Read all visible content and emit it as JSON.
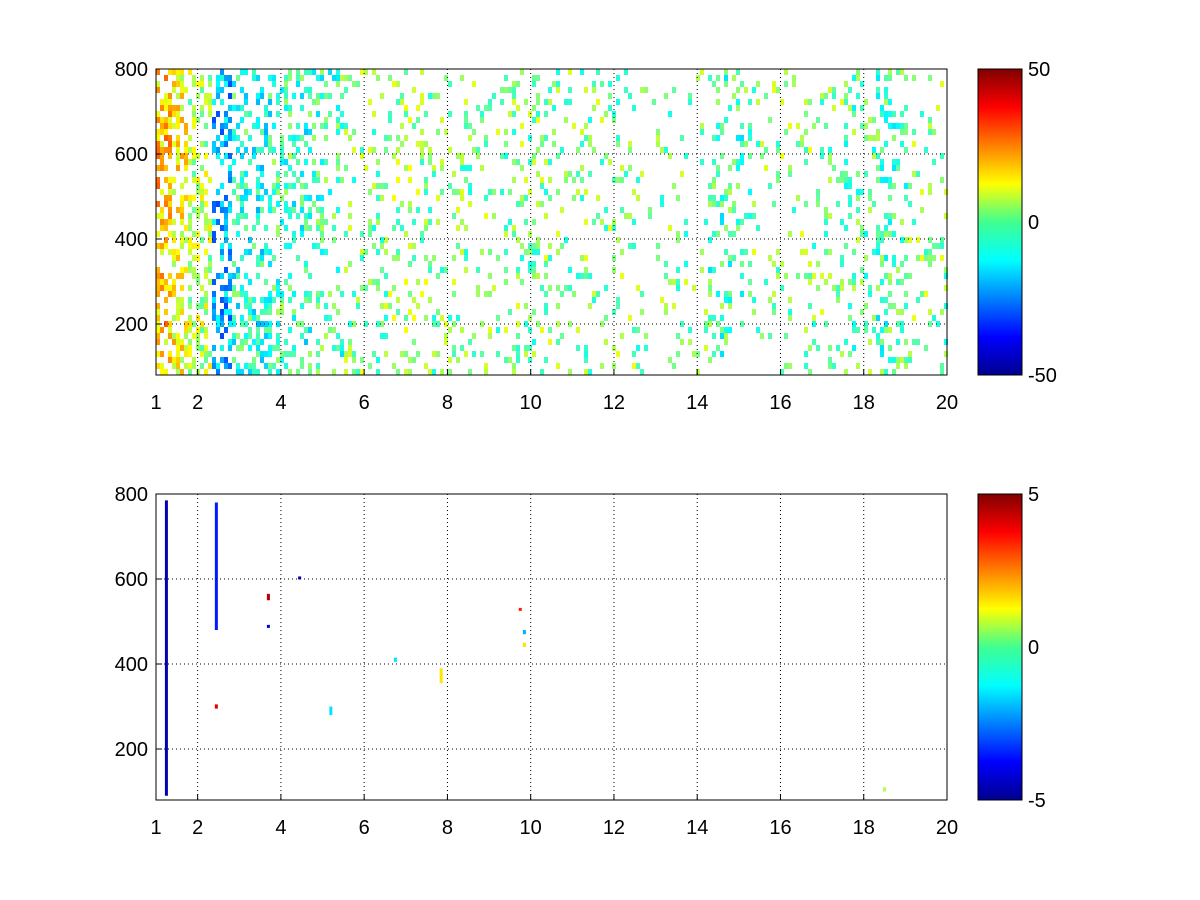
{
  "chart_data": [
    {
      "type": "heatmap",
      "title": "",
      "xlabel": "",
      "ylabel": "",
      "xlim": [
        1,
        20
      ],
      "ylim": [
        80,
        800
      ],
      "grid": true,
      "x_ticks": [
        1,
        2,
        4,
        6,
        8,
        10,
        12,
        14,
        16,
        18,
        20
      ],
      "y_ticks": [
        200,
        400,
        600,
        800
      ],
      "colorbar": {
        "colormap": "jet",
        "clim": [
          -50,
          50
        ],
        "ticks": [
          50,
          0,
          -50
        ]
      },
      "background": "#ffffff",
      "approximate_column_density": [
        {
          "x": 1.1,
          "density": 0.9,
          "bias": 0.18
        },
        {
          "x": 1.5,
          "density": 0.8,
          "bias": 0.12
        },
        {
          "x": 2.0,
          "density": 0.7,
          "bias": 0.05
        },
        {
          "x": 2.5,
          "density": 0.85,
          "bias": -0.2
        },
        {
          "x": 3.0,
          "density": 0.75,
          "bias": -0.08
        },
        {
          "x": 3.5,
          "density": 0.7,
          "bias": -0.1
        },
        {
          "x": 4.0,
          "density": 0.65,
          "bias": -0.05
        },
        {
          "x": 4.5,
          "density": 0.55,
          "bias": -0.08
        },
        {
          "x": 5.0,
          "density": 0.45,
          "bias": -0.05
        },
        {
          "x": 6.0,
          "density": 0.35,
          "bias": 0.0
        },
        {
          "x": 7.0,
          "density": 0.3,
          "bias": 0.02
        },
        {
          "x": 8.0,
          "density": 0.33,
          "bias": 0.0
        },
        {
          "x": 9.0,
          "density": 0.25,
          "bias": 0.0
        },
        {
          "x": 10.0,
          "density": 0.4,
          "bias": 0.0
        },
        {
          "x": 11.0,
          "density": 0.25,
          "bias": 0.0
        },
        {
          "x": 12.0,
          "density": 0.2,
          "bias": 0.0
        },
        {
          "x": 13.0,
          "density": 0.15,
          "bias": 0.0
        },
        {
          "x": 14.0,
          "density": 0.14,
          "bias": 0.0
        },
        {
          "x": 14.5,
          "density": 0.45,
          "bias": -0.05
        },
        {
          "x": 16.0,
          "density": 0.2,
          "bias": 0.0
        },
        {
          "x": 17.0,
          "density": 0.25,
          "bias": 0.0
        },
        {
          "x": 18.0,
          "density": 0.4,
          "bias": -0.03
        },
        {
          "x": 18.5,
          "density": 0.55,
          "bias": -0.05
        },
        {
          "x": 19.5,
          "density": 0.2,
          "bias": 0.0
        }
      ]
    },
    {
      "type": "heatmap",
      "title": "",
      "xlabel": "",
      "ylabel": "",
      "xlim": [
        1,
        20
      ],
      "ylim": [
        80,
        800
      ],
      "grid": true,
      "x_ticks": [
        1,
        2,
        4,
        6,
        8,
        10,
        12,
        14,
        16,
        18,
        20
      ],
      "y_ticks": [
        200,
        400,
        600,
        800
      ],
      "colorbar": {
        "colormap": "jet",
        "clim": [
          -5,
          5
        ],
        "ticks": [
          5,
          0,
          -5
        ]
      },
      "background": "#ffffff",
      "sparse_features": [
        {
          "x": 1.25,
          "y_from": 90,
          "y_to": 785,
          "value": -4.5
        },
        {
          "x": 2.45,
          "y_from": 480,
          "y_to": 780,
          "value": -3.5
        },
        {
          "x": 2.45,
          "y_from": 295,
          "y_to": 305,
          "value": 4.0
        },
        {
          "x": 3.7,
          "y_from": 550,
          "y_to": 565,
          "value": 4.5
        },
        {
          "x": 3.7,
          "y_from": 485,
          "y_to": 492,
          "value": -4.0
        },
        {
          "x": 4.45,
          "y_from": 600,
          "y_to": 606,
          "value": -4.5
        },
        {
          "x": 5.2,
          "y_from": 280,
          "y_to": 300,
          "value": -1.5
        },
        {
          "x": 6.75,
          "y_from": 405,
          "y_to": 415,
          "value": -1.5
        },
        {
          "x": 7.85,
          "y_from": 355,
          "y_to": 390,
          "value": 1.5
        },
        {
          "x": 9.75,
          "y_from": 525,
          "y_to": 532,
          "value": 3.5
        },
        {
          "x": 9.85,
          "y_from": 470,
          "y_to": 480,
          "value": -2.0
        },
        {
          "x": 9.85,
          "y_from": 440,
          "y_to": 450,
          "value": 1.5
        },
        {
          "x": 18.5,
          "y_from": 100,
          "y_to": 110,
          "value": 0.5
        }
      ]
    }
  ]
}
